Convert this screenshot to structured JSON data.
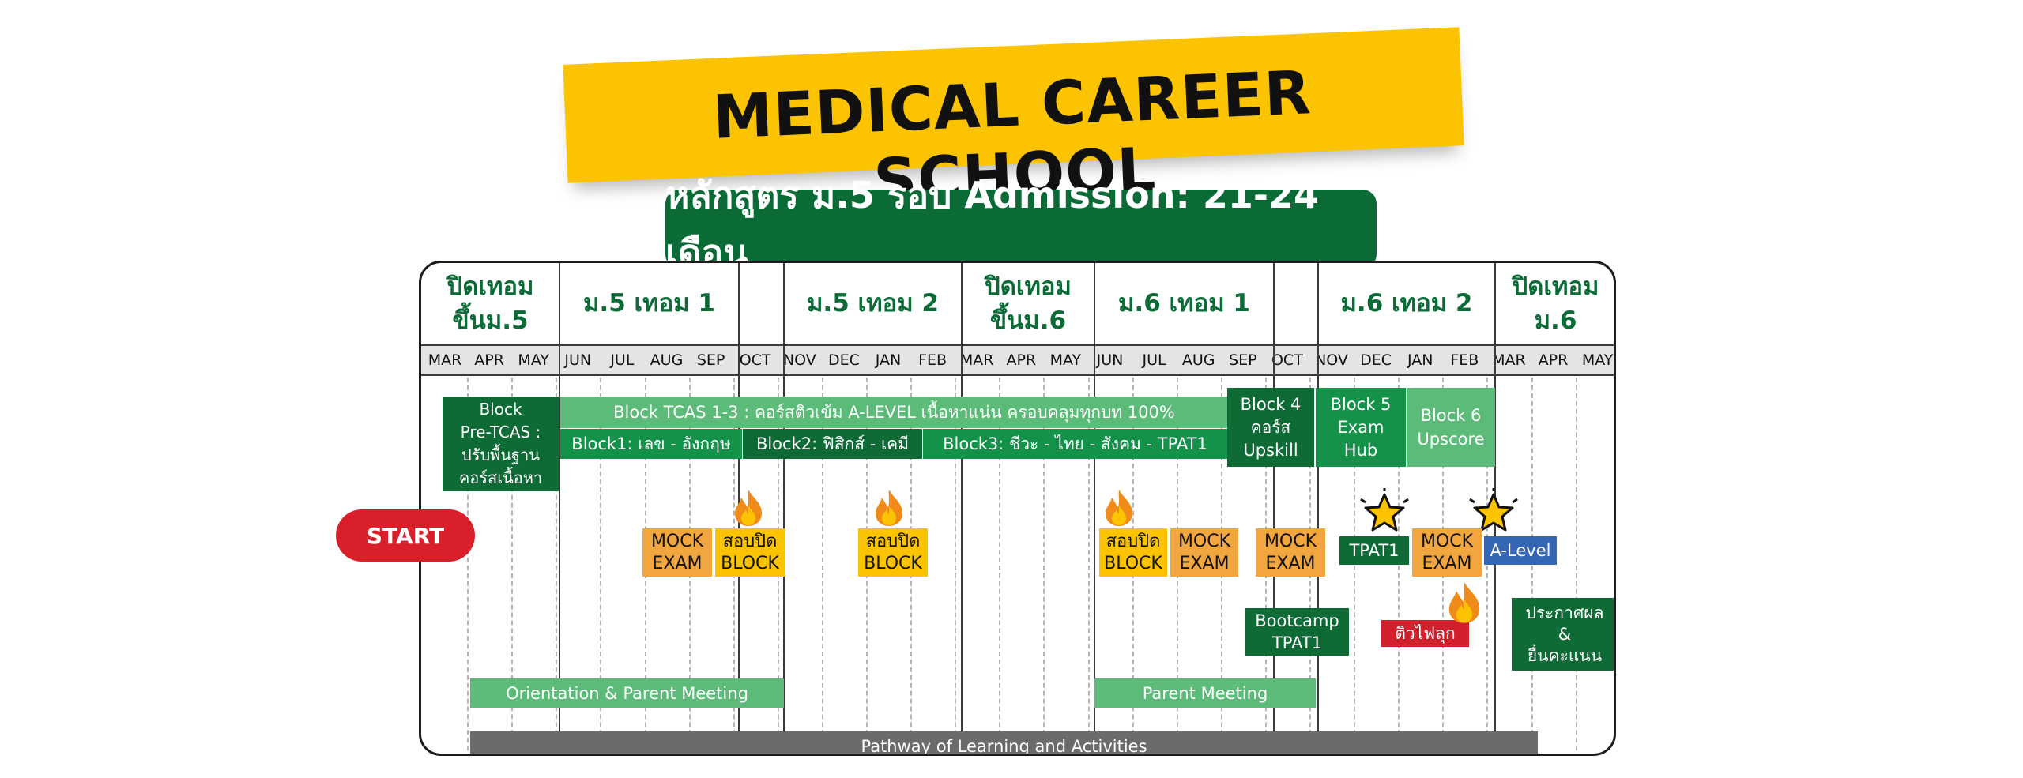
{
  "header": {
    "title": "MEDICAL CAREER SCHOOL",
    "course_title": "หลักสูตร ม.5 รอบ Admission: 21-24 เดือน"
  },
  "start_label": "START",
  "terms": [
    {
      "line1": "ปิดเทอม",
      "line2": "ขึ้นม.5"
    },
    {
      "line1": "ม.5 เทอม 1",
      "line2": ""
    },
    {
      "line1": "",
      "line2": ""
    },
    {
      "line1": "ม.5 เทอม 2",
      "line2": ""
    },
    {
      "line1": "ปิดเทอม",
      "line2": "ขึ้นม.6"
    },
    {
      "line1": "ม.6 เทอม 1",
      "line2": ""
    },
    {
      "line1": "",
      "line2": ""
    },
    {
      "line1": "ม.6 เทอม 2",
      "line2": ""
    },
    {
      "line1": "ปิดเทอม",
      "line2": "ม.6"
    }
  ],
  "months": [
    "MAR",
    "APR",
    "MAY",
    "JUN",
    "JUL",
    "AUG",
    "SEP",
    "OCT",
    "NOV",
    "DEC",
    "JAN",
    "FEB",
    "MAR",
    "APR",
    "MAY",
    "JUN",
    "JUL",
    "AUG",
    "SEP",
    "OCT",
    "NOV",
    "DEC",
    "JAN",
    "FEB",
    "MAR",
    "APR",
    "MAY"
  ],
  "blocks": {
    "pretcas": [
      "Block",
      "Pre-TCAS :",
      "ปรับพื้นฐาน",
      "คอร์สเนื้อหา"
    ],
    "tcas_main": "Block TCAS 1-3 : คอร์สติวเข้ม A-LEVEL เนื้อหาแน่น ครอบคลุมทุกบท 100%",
    "block1": "Block1: เลข - อังกฤษ",
    "block2": "Block2: ฟิสิกส์ - เคมี",
    "block3": "Block3: ชีวะ - ไทย - สังคม - TPAT1",
    "block4": [
      "Block 4",
      "คอร์ส",
      "Upskill"
    ],
    "block5": [
      "Block 5",
      "Exam",
      "Hub"
    ],
    "block6": [
      "Block 6",
      "Upscore"
    ]
  },
  "events": {
    "mock1": [
      "MOCK",
      "EXAM"
    ],
    "close1": [
      "สอบปิด",
      "BLOCK"
    ],
    "close2": [
      "สอบปิด",
      "BLOCK"
    ],
    "close3": [
      "สอบปิด",
      "BLOCK"
    ],
    "mock2": [
      "MOCK",
      "EXAM"
    ],
    "mock3": [
      "MOCK",
      "EXAM"
    ],
    "tpat1": "TPAT1",
    "mock4": [
      "MOCK",
      "EXAM"
    ],
    "alevel": "A-Level",
    "bootcamp": [
      "Bootcamp",
      "TPAT1"
    ],
    "tutor": "ติวไฟลุก",
    "announce": [
      "ประกาศผล",
      "&",
      "ยื่นคะแนน"
    ]
  },
  "bars": {
    "orientation": "Orientation & Parent Meeting",
    "parent": "Parent Meeting",
    "pathway": "Pathway of Learning and Activities"
  },
  "colors": {
    "dark_green": "#0f6b36",
    "mid_green": "#14924a",
    "light_green": "#5dbb7a",
    "yellow": "#fcc300",
    "orange": "#f2a640",
    "red": "#d21f2b",
    "blue": "#3566b4",
    "gray": "#6b6b6b"
  },
  "icons": [
    "fire-icon",
    "star-icon"
  ]
}
